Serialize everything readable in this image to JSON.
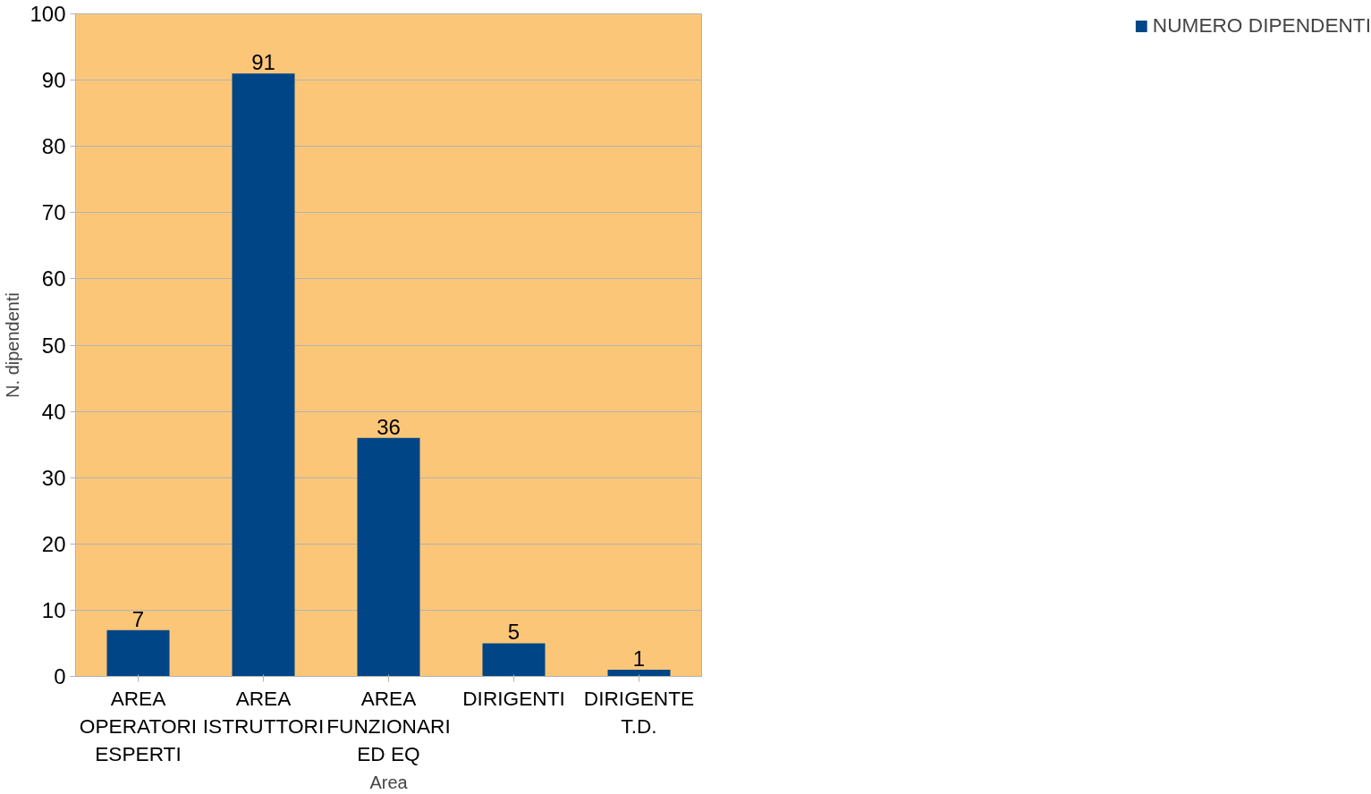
{
  "chart_data": {
    "type": "bar",
    "xlabel": "Area",
    "ylabel": "N. dipendenti",
    "categories": [
      "AREA OPERATORI ESPERTI",
      "AREA ISTRUTTORI",
      "AREA FUNZIONARI ED EQ",
      "DIRIGENTI",
      "DIRIGENTE T.D."
    ],
    "series": [
      {
        "name": "NUMERO DIPENDENTI",
        "color": "#004586",
        "values": [
          7,
          91,
          36,
          5,
          1
        ]
      }
    ],
    "ylim": [
      0,
      100
    ],
    "yticks": [
      0,
      10,
      20,
      30,
      40,
      50,
      60,
      70,
      80,
      90,
      100
    ],
    "grid": "y",
    "legend": "right",
    "data_labels": true
  }
}
